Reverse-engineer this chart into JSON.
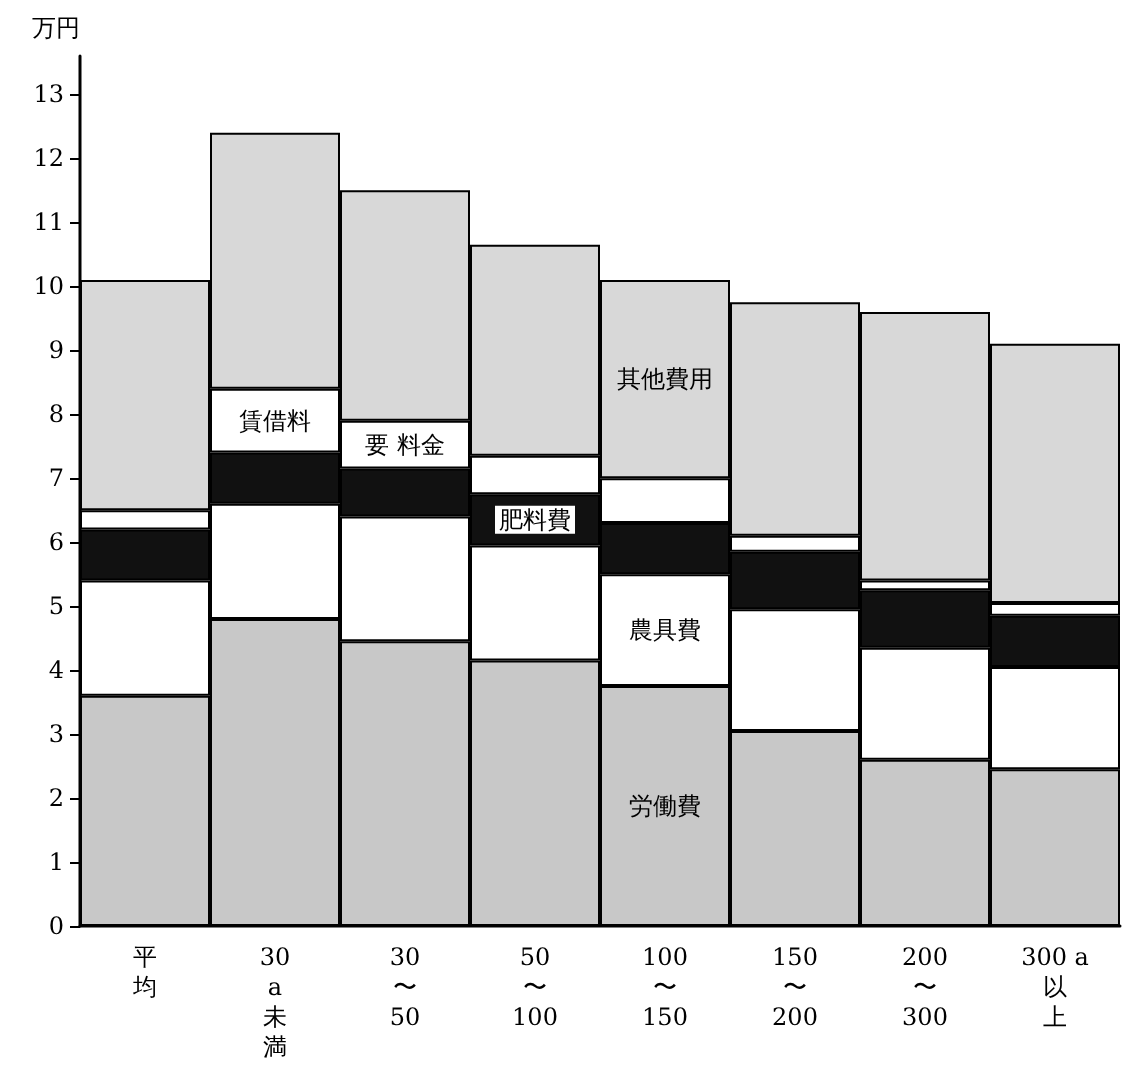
{
  "chart_data": {
    "type": "bar",
    "stacked": true,
    "ylabel": "万円",
    "categories": [
      "平均",
      "30a未満",
      "30〜50",
      "50〜100",
      "100〜150",
      "150〜200",
      "200〜300",
      "300 a以上"
    ],
    "series": [
      {
        "name": "労働費",
        "color": "#c8c8c8",
        "values": [
          3.6,
          4.8,
          4.45,
          4.15,
          3.75,
          3.05,
          2.6,
          2.45
        ]
      },
      {
        "name": "農具費",
        "color": "#ffffff",
        "values": [
          1.8,
          1.8,
          1.95,
          1.8,
          1.75,
          1.9,
          1.75,
          1.6
        ]
      },
      {
        "name": "肥料費",
        "color": "#111111",
        "values": [
          0.8,
          0.8,
          0.75,
          0.8,
          0.8,
          0.9,
          0.9,
          0.8
        ]
      },
      {
        "name": "賃借料",
        "color": "#ffffff",
        "values": [
          0.3,
          1.0,
          0.75,
          0.6,
          0.7,
          0.25,
          0.15,
          0.2
        ]
      },
      {
        "name": "其他費用",
        "color": "#d8d8d8",
        "values": [
          3.6,
          4.0,
          3.6,
          3.3,
          3.1,
          3.65,
          4.2,
          4.05
        ]
      }
    ],
    "annotations": [
      "要 料金"
    ],
    "ylim": [
      0,
      13.6
    ],
    "yticks": [
      0,
      1,
      2,
      3,
      4,
      5,
      6,
      7,
      8,
      9,
      10,
      11,
      12,
      13
    ],
    "grid": false,
    "legend": false
  }
}
